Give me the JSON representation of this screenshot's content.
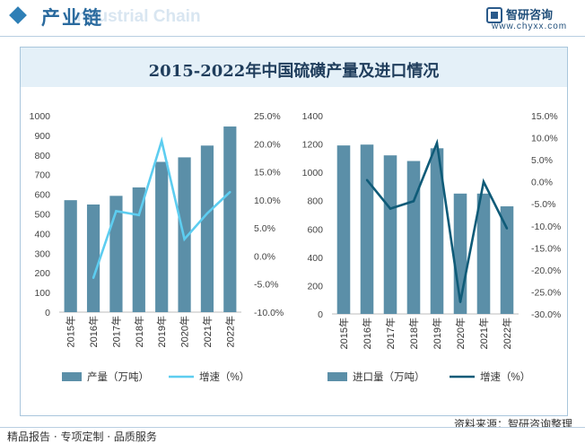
{
  "header": {
    "title": "产业链",
    "watermark": "Industrial Chain",
    "brand_name": "智研咨询",
    "brand_url": "www.chyxx.com"
  },
  "footer": {
    "left": "精品报告 · 专项定制 · 品质服务",
    "source": "资料来源：智研咨询整理"
  },
  "colors": {
    "bar": "#5b8fa8",
    "line_left": "#5dcdf0",
    "line_right": "#0f5b78",
    "title_band": "#e4f0f8",
    "accent": "#2f7fb6"
  },
  "chart_data": [
    {
      "type": "bar",
      "title": "2015-2022年中国硫磺产量及进口情况",
      "categories": [
        "2015年",
        "2016年",
        "2017年",
        "2018年",
        "2019年",
        "2020年",
        "2021年",
        "2022年"
      ],
      "series": [
        {
          "name": "产量（万吨）",
          "type": "bar",
          "axis": "left",
          "values": [
            570,
            548,
            592,
            635,
            765,
            788,
            848,
            945
          ]
        },
        {
          "name": "增速（%）",
          "type": "line",
          "axis": "right",
          "values": [
            null,
            -3.9,
            8.0,
            7.3,
            20.5,
            3.0,
            7.6,
            11.4
          ]
        }
      ],
      "y_left": {
        "ylim": [
          0,
          1000
        ],
        "ticks": [
          "0",
          "100",
          "200",
          "300",
          "400",
          "500",
          "600",
          "700",
          "800",
          "900",
          "1000"
        ]
      },
      "y_right": {
        "ylim": [
          -10,
          25
        ],
        "ticks": [
          "-10.0%",
          "-5.0%",
          "0.0%",
          "5.0%",
          "10.0%",
          "15.0%",
          "20.0%",
          "25.0%"
        ]
      },
      "legend": "bottom"
    },
    {
      "type": "bar",
      "categories": [
        "2015年",
        "2016年",
        "2017年",
        "2018年",
        "2019年",
        "2020年",
        "2021年",
        "2022年"
      ],
      "series": [
        {
          "name": "进口量（万吨）",
          "type": "bar",
          "axis": "left",
          "values": [
            1190,
            1196,
            1120,
            1080,
            1170,
            850,
            850,
            760
          ]
        },
        {
          "name": "增速（%）",
          "type": "line",
          "axis": "right",
          "values": [
            null,
            0.4,
            -6.1,
            -4.4,
            8.8,
            -27.3,
            0.0,
            -10.6
          ]
        }
      ],
      "y_left": {
        "ylim": [
          0,
          1400
        ],
        "ticks": [
          "0",
          "200",
          "400",
          "600",
          "800",
          "1000",
          "1200",
          "1400"
        ]
      },
      "y_right": {
        "ylim": [
          -30,
          15
        ],
        "ticks": [
          "-30.0%",
          "-25.0%",
          "-20.0%",
          "-15.0%",
          "-10.0%",
          "-5.0%",
          "0.0%",
          "5.0%",
          "10.0%",
          "15.0%"
        ]
      },
      "legend": "bottom"
    }
  ]
}
